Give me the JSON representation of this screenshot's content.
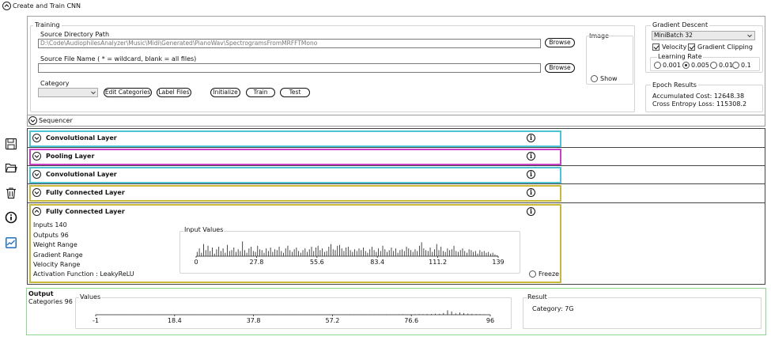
{
  "window": {
    "title": "Create and Train CNN"
  },
  "training": {
    "group_label": "Training",
    "source_dir_label": "Source Directory Path",
    "source_dir_value": "D:\\Code\\AudiophilesAnalyzer\\Music\\Midi\\Generated\\PianoWav\\SpectrogramsFromMRFFTMono",
    "browse_label": "Browse",
    "source_file_label": "Source File Name ( * = wildcard, blank = all files)",
    "source_file_value": "",
    "category_label": "Category",
    "category_value": "",
    "buttons": {
      "edit_categories": "Edit Categories",
      "label_files": "Label Files",
      "initialize": "Initialize",
      "train": "Train",
      "test": "Test"
    },
    "image_label": "Image",
    "show_label": "Show"
  },
  "gradient_descent": {
    "label": "Gradient Descent",
    "mode_value": "MiniBatch 32",
    "velocity_label": "Velocity",
    "velocity_checked": true,
    "clipping_label": "Gradient Clipping",
    "clipping_checked": true,
    "learning_rate_label": "Learning Rate",
    "rates": [
      "0.001",
      "0.005",
      "0.01",
      "0.1"
    ],
    "selected_rate": "0.005"
  },
  "epoch_results": {
    "label": "Epoch Results",
    "accumulated_cost": "Accumulated Cost: 12648.38",
    "cross_entropy": "Cross Entropy Loss: 115308.2"
  },
  "sequencer": {
    "label": "Sequencer"
  },
  "layers": [
    {
      "title": "Convolutional Layer",
      "color": "#4fc3d6"
    },
    {
      "title": "Pooling Layer",
      "color": "#c83fc8"
    },
    {
      "title": "Convolutional Layer",
      "color": "#4fc3d6"
    },
    {
      "title": "Fully Connected Layer",
      "color": "#c9b93a"
    },
    {
      "title": "Fully Connected Layer",
      "color": "#c9b93a"
    }
  ],
  "fc_details": {
    "inputs": "Inputs 140",
    "outputs": "Outputs 96",
    "weight_range": "Weight Range",
    "gradient_range": "Gradient Range",
    "velocity_range": "Velocity Range",
    "activation": "Activation Function : LeakyReLU",
    "freeze_label": "Freeze",
    "input_values_label": "Input Values"
  },
  "output": {
    "title": "Output",
    "categories": "Categories 96",
    "values_label": "Values",
    "result_label": "Result",
    "result_value": "Category: 7G"
  },
  "toolbar_icons": [
    "save-icon",
    "folder-open-icon",
    "trash-icon",
    "info-icon",
    "chart-icon"
  ],
  "chart_data": [
    {
      "type": "bar",
      "title": "Input Values",
      "x_ticks": [
        "0",
        "27.8",
        "55.6",
        "83.4",
        "111.2",
        "139"
      ],
      "xlim": [
        0,
        139
      ],
      "ylim": [
        0,
        1
      ],
      "series": [
        {
          "values": [
            0.25,
            0.45,
            0.2,
            0.7,
            0.35,
            0.6,
            0.3,
            0.5,
            0.15,
            0.4,
            0.55,
            0.3,
            0.45,
            0.2,
            0.65,
            0.3,
            0.35,
            0.5,
            0.25,
            0.4,
            0.3,
            0.85,
            0.35,
            0.2,
            0.45,
            0.55,
            0.3,
            0.25,
            0.6,
            0.4,
            0.35,
            0.2,
            0.45,
            0.3,
            0.5,
            0.25,
            0.4,
            0.35,
            0.55,
            0.3,
            0.2,
            0.45,
            0.6,
            0.35,
            0.25,
            0.4,
            0.5,
            0.3,
            0.2,
            0.35,
            0.45,
            0.25,
            0.4,
            0.55,
            0.3,
            0.5,
            0.6,
            0.35,
            0.45,
            0.25,
            0.3,
            0.55,
            0.7,
            0.4,
            0.35,
            0.6,
            0.65,
            0.45,
            0.3,
            0.5,
            0.55,
            0.35,
            0.25,
            0.4,
            0.3,
            0.45,
            0.35,
            0.5,
            0.3,
            0.2,
            0.4,
            0.55,
            0.35,
            0.25,
            0.45,
            0.3,
            0.6,
            0.4,
            0.25,
            0.35,
            0.5,
            0.3,
            0.45,
            0.2,
            0.35,
            0.4,
            0.3,
            0.55,
            0.45,
            0.35,
            0.25,
            0.4,
            0.3,
            0.6,
            0.8,
            0.45,
            0.35,
            0.3,
            0.5,
            0.25,
            0.4,
            0.7,
            0.35,
            0.55,
            0.3,
            0.25,
            0.45,
            0.35,
            0.4,
            0.6,
            0.3,
            0.25,
            0.35,
            0.45,
            0.3,
            0.2,
            0.4,
            0.35,
            0.25,
            0.3,
            0.15,
            0.35,
            0.25,
            0.3,
            0.2,
            0.25,
            0.15,
            0.2,
            0.1,
            0.05
          ]
        }
      ]
    },
    {
      "type": "bar",
      "title": "Values",
      "x_ticks": [
        "-1",
        "18.4",
        "37.8",
        "57.2",
        "76.6",
        "96"
      ],
      "xlim": [
        -1,
        96
      ],
      "ylim": [
        0,
        1
      ],
      "series": [
        {
          "values": [
            0.02,
            0.02,
            0.02,
            0.02,
            0.02,
            0.02,
            0.02,
            0.02,
            0.02,
            0.02,
            0.02,
            0.02,
            0.02,
            0.02,
            0.02,
            0.02,
            0.02,
            0.02,
            0.02,
            0.02,
            0.02,
            0.02,
            0.02,
            0.02,
            0.02,
            0.02,
            0.02,
            0.02,
            0.02,
            0.02,
            0.02,
            0.02,
            0.02,
            0.02,
            0.02,
            0.02,
            0.02,
            0.02,
            0.02,
            0.02,
            0.02,
            0.02,
            0.02,
            0.02,
            0.02,
            0.02,
            0.02,
            0.02,
            0.02,
            0.02,
            0.02,
            0.02,
            0.02,
            0.02,
            0.02,
            0.02,
            0.02,
            0.02,
            0.02,
            0.02,
            0.02,
            0.02,
            0.03,
            0.03,
            0.03,
            0.03,
            0.03,
            0.03,
            0.04,
            0.03,
            0.03,
            0.04,
            0.03,
            0.03,
            0.04,
            0.05,
            0.04,
            0.04,
            0.05,
            0.06,
            0.05,
            0.06,
            0.07,
            0.1,
            0.08,
            0.15,
            0.4,
            0.3,
            0.12,
            0.2,
            0.15,
            0.1,
            0.08,
            0.06,
            0.05,
            0.04,
            0.03
          ]
        }
      ]
    }
  ]
}
